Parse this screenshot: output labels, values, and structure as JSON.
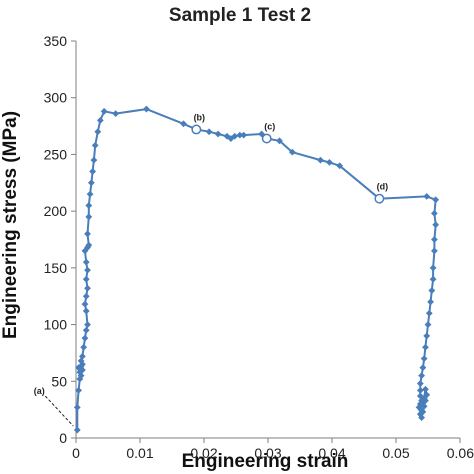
{
  "chart_data": {
    "type": "scatter",
    "title": "Sample 1 Test 2",
    "xlabel": "Engineering strain",
    "ylabel": "Engineering stress (MPa)",
    "xlim": [
      0,
      0.06
    ],
    "ylim": [
      0,
      350
    ],
    "x_ticks": [
      "0",
      "0.01",
      "0.02",
      "0.03",
      "0.04",
      "0.05",
      "0.06"
    ],
    "y_ticks": [
      "0",
      "50",
      "100",
      "150",
      "200",
      "250",
      "300",
      "350"
    ],
    "x_tick_values": [
      0,
      0.01,
      0.02,
      0.03,
      0.04,
      0.05,
      0.06
    ],
    "y_tick_values": [
      0,
      50,
      100,
      150,
      200,
      250,
      300,
      350
    ],
    "grid": false,
    "series_color": "#4a7ebb",
    "series": [
      {
        "points": [
          [
            0.0002,
            7
          ],
          [
            0.0002,
            27
          ],
          [
            0.0004,
            42
          ],
          [
            0.0006,
            52
          ],
          [
            0.0006,
            58
          ],
          [
            0.0004,
            62
          ],
          [
            0.0008,
            55
          ],
          [
            0.001,
            60
          ],
          [
            0.0008,
            63
          ],
          [
            0.001,
            65
          ],
          [
            0.0008,
            68
          ],
          [
            0.001,
            72
          ],
          [
            0.0012,
            80
          ],
          [
            0.0014,
            88
          ],
          [
            0.0016,
            95
          ],
          [
            0.0018,
            100
          ],
          [
            0.0016,
            112
          ],
          [
            0.0014,
            118
          ],
          [
            0.0016,
            125
          ],
          [
            0.0018,
            132
          ],
          [
            0.0016,
            140
          ],
          [
            0.0018,
            148
          ],
          [
            0.0016,
            155
          ],
          [
            0.0014,
            165
          ],
          [
            0.0018,
            168
          ],
          [
            0.002,
            170
          ],
          [
            0.0018,
            180
          ],
          [
            0.002,
            195
          ],
          [
            0.002,
            205
          ],
          [
            0.0022,
            215
          ],
          [
            0.0024,
            225
          ],
          [
            0.0026,
            235
          ],
          [
            0.0028,
            245
          ],
          [
            0.003,
            258
          ],
          [
            0.0034,
            270
          ],
          [
            0.0038,
            280
          ],
          [
            0.0044,
            288
          ],
          [
            0.0062,
            286
          ],
          [
            0.011,
            290
          ],
          [
            0.0168,
            277
          ],
          [
            0.0188,
            272
          ],
          [
            0.0208,
            270
          ],
          [
            0.0222,
            268
          ],
          [
            0.0236,
            266
          ],
          [
            0.0242,
            264
          ],
          [
            0.0248,
            266
          ],
          [
            0.0256,
            267
          ],
          [
            0.0262,
            267
          ],
          [
            0.029,
            268
          ],
          [
            0.0298,
            264
          ],
          [
            0.0318,
            262
          ],
          [
            0.0338,
            252
          ],
          [
            0.0382,
            245
          ],
          [
            0.0396,
            243
          ],
          [
            0.0412,
            240
          ],
          [
            0.0474,
            211
          ],
          [
            0.0548,
            213
          ],
          [
            0.0562,
            210
          ],
          [
            0.056,
            198
          ],
          [
            0.0562,
            188
          ],
          [
            0.056,
            175
          ],
          [
            0.056,
            165
          ],
          [
            0.0558,
            150
          ],
          [
            0.0558,
            140
          ],
          [
            0.0556,
            130
          ],
          [
            0.0554,
            120
          ],
          [
            0.0552,
            110
          ],
          [
            0.055,
            100
          ],
          [
            0.0548,
            90
          ],
          [
            0.0546,
            80
          ],
          [
            0.0544,
            70
          ],
          [
            0.0542,
            62
          ],
          [
            0.054,
            55
          ],
          [
            0.0538,
            48
          ],
          [
            0.0538,
            42
          ],
          [
            0.0538,
            37
          ],
          [
            0.054,
            33
          ],
          [
            0.0538,
            30
          ],
          [
            0.0536,
            27
          ],
          [
            0.054,
            24
          ],
          [
            0.0538,
            21
          ],
          [
            0.054,
            18
          ],
          [
            0.0542,
            23
          ],
          [
            0.0544,
            28
          ],
          [
            0.0546,
            33
          ],
          [
            0.0548,
            38
          ],
          [
            0.0546,
            43
          ],
          [
            0.0544,
            35
          ],
          [
            0.0542,
            31
          ]
        ]
      }
    ],
    "annotations": [
      {
        "label": "(a)",
        "x": 0.0002,
        "y": 7,
        "open_marker": false
      },
      {
        "label": "(b)",
        "x": 0.0188,
        "y": 272,
        "open_marker": true
      },
      {
        "label": "(c)",
        "x": 0.0298,
        "y": 264,
        "open_marker": true
      },
      {
        "label": "(d)",
        "x": 0.0474,
        "y": 211,
        "open_marker": true
      }
    ]
  }
}
